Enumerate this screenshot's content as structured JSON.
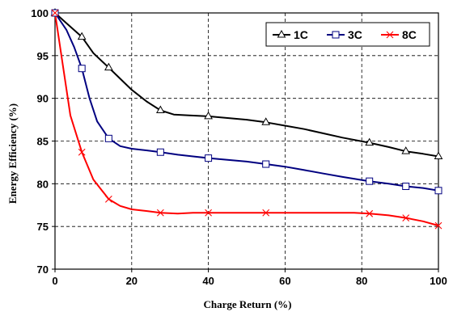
{
  "chart_data": {
    "type": "line",
    "title": "",
    "xlabel": "Charge Return (%)",
    "ylabel": "Energy Efficiency (%)",
    "xlim": [
      0,
      100
    ],
    "ylim": [
      70,
      100
    ],
    "xticks": [
      0,
      20,
      40,
      60,
      80,
      100
    ],
    "yticks": [
      70,
      75,
      80,
      85,
      90,
      95,
      100
    ],
    "xtick_labels": [
      "0",
      "20",
      "40",
      "60",
      "80",
      "100"
    ],
    "ytick_labels": [
      "70",
      "75",
      "80",
      "85",
      "90",
      "95",
      "100"
    ],
    "grid": true,
    "legend_position": "top-right",
    "series": [
      {
        "name": "1C",
        "color": "#000000",
        "marker": "triangle",
        "x": [
          0,
          7,
          14,
          27.5,
          40,
          55,
          82,
          91.5,
          100
        ],
        "y": [
          100,
          97.2,
          93.6,
          88.6,
          87.9,
          87.2,
          84.8,
          83.8,
          83.2
        ],
        "curve_x": [
          0,
          3,
          7,
          10,
          14,
          17,
          20,
          24,
          27.5,
          31,
          35,
          40,
          45,
          50,
          55,
          60,
          65,
          70,
          75,
          82,
          87,
          91.5,
          96,
          100
        ],
        "curve_y": [
          100,
          98.8,
          97.2,
          95.3,
          93.6,
          92.3,
          91.0,
          89.6,
          88.6,
          88.1,
          88.0,
          87.9,
          87.7,
          87.5,
          87.2,
          86.8,
          86.4,
          85.9,
          85.4,
          84.8,
          84.3,
          83.8,
          83.5,
          83.2
        ]
      },
      {
        "name": "3C",
        "color": "#000080",
        "marker": "square",
        "x": [
          0,
          7,
          14,
          27.5,
          40,
          55,
          82,
          91.5,
          100
        ],
        "y": [
          100,
          93.5,
          85.3,
          83.7,
          83.0,
          82.3,
          80.3,
          79.7,
          79.2
        ],
        "curve_x": [
          0,
          3,
          5,
          7,
          9,
          11,
          14,
          17,
          20,
          24,
          27.5,
          32,
          36,
          40,
          45,
          50,
          55,
          60,
          65,
          70,
          75,
          82,
          87,
          91.5,
          96,
          100
        ],
        "curve_y": [
          100,
          98,
          96,
          93.5,
          90,
          87.3,
          85.3,
          84.4,
          84.1,
          83.9,
          83.7,
          83.4,
          83.2,
          83.0,
          82.8,
          82.6,
          82.3,
          82.0,
          81.6,
          81.2,
          80.8,
          80.3,
          80.0,
          79.7,
          79.5,
          79.2
        ]
      },
      {
        "name": "8C",
        "color": "#ff0000",
        "marker": "x",
        "x": [
          0,
          7,
          14,
          27.5,
          40,
          55,
          82,
          91.5,
          100
        ],
        "y": [
          100,
          83.7,
          78.2,
          76.6,
          76.6,
          76.6,
          76.5,
          76.0,
          75.1
        ],
        "curve_x": [
          0,
          2,
          4,
          7,
          10,
          14,
          17,
          20,
          24,
          27.5,
          32,
          36,
          40,
          45,
          50,
          55,
          60,
          70,
          78,
          82,
          87,
          91.5,
          96,
          100
        ],
        "curve_y": [
          100,
          94,
          88,
          83.7,
          80.5,
          78.2,
          77.4,
          77.0,
          76.8,
          76.6,
          76.5,
          76.6,
          76.6,
          76.6,
          76.6,
          76.6,
          76.6,
          76.6,
          76.6,
          76.5,
          76.3,
          76.0,
          75.6,
          75.1
        ]
      }
    ]
  }
}
